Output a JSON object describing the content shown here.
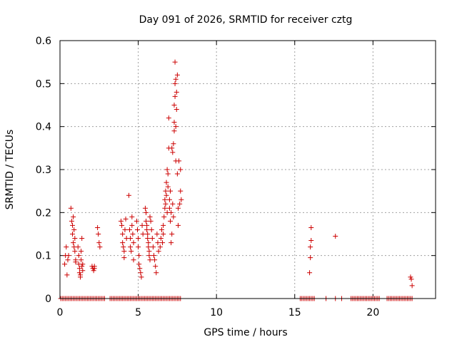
{
  "chart_data": {
    "type": "scatter",
    "title": "Day 091 of 2026, SRMTID for receiver cztg",
    "xlabel": "GPS time / hours",
    "ylabel": "SRMTID / TECUs",
    "xlim": [
      0,
      24
    ],
    "ylim": [
      0,
      0.6
    ],
    "x_ticks": [
      0,
      5,
      10,
      15,
      20
    ],
    "x_tick_labels": [
      "0",
      "5",
      "10",
      "15",
      "20"
    ],
    "y_ticks": [
      0,
      0.1,
      0.2,
      0.3,
      0.4,
      0.5,
      0.6
    ],
    "y_tick_labels": [
      "0",
      "0.1",
      "0.2",
      "0.3",
      "0.4",
      "0.5",
      "0.6"
    ],
    "grid": true,
    "marker": "+",
    "color": "#cc0000",
    "series": [
      {
        "name": "SRMTID",
        "points": [
          [
            0.3,
            0.08
          ],
          [
            0.35,
            0.1
          ],
          [
            0.4,
            0.12
          ],
          [
            0.45,
            0.055
          ],
          [
            0.5,
            0.09
          ],
          [
            0.55,
            0.1
          ],
          [
            0.7,
            0.21
          ],
          [
            0.75,
            0.18
          ],
          [
            0.8,
            0.17
          ],
          [
            0.8,
            0.15
          ],
          [
            0.85,
            0.19
          ],
          [
            0.85,
            0.13
          ],
          [
            0.9,
            0.16
          ],
          [
            0.9,
            0.12
          ],
          [
            0.95,
            0.14
          ],
          [
            0.95,
            0.11
          ],
          [
            1.0,
            0.09
          ],
          [
            1.0,
            0.085
          ],
          [
            1.15,
            0.12
          ],
          [
            1.2,
            0.1
          ],
          [
            1.2,
            0.08
          ],
          [
            1.25,
            0.07
          ],
          [
            1.25,
            0.06
          ],
          [
            1.3,
            0.055
          ],
          [
            1.3,
            0.05
          ],
          [
            1.35,
            0.11
          ],
          [
            1.35,
            0.09
          ],
          [
            1.4,
            0.14
          ],
          [
            1.4,
            0.075
          ],
          [
            1.45,
            0.08
          ],
          [
            1.45,
            0.065
          ],
          [
            2.05,
            0.075
          ],
          [
            2.1,
            0.07
          ],
          [
            2.15,
            0.065
          ],
          [
            2.2,
            0.075
          ],
          [
            2.2,
            0.07
          ],
          [
            2.4,
            0.165
          ],
          [
            2.45,
            0.15
          ],
          [
            2.5,
            0.13
          ],
          [
            2.55,
            0.12
          ],
          [
            3.9,
            0.18
          ],
          [
            3.95,
            0.17
          ],
          [
            4.0,
            0.15
          ],
          [
            4.0,
            0.13
          ],
          [
            4.05,
            0.12
          ],
          [
            4.1,
            0.11
          ],
          [
            4.1,
            0.095
          ],
          [
            4.15,
            0.16
          ],
          [
            4.2,
            0.185
          ],
          [
            4.25,
            0.14
          ],
          [
            4.4,
            0.24
          ],
          [
            4.45,
            0.16
          ],
          [
            4.5,
            0.14
          ],
          [
            4.5,
            0.12
          ],
          [
            4.55,
            0.11
          ],
          [
            4.6,
            0.19
          ],
          [
            4.6,
            0.17
          ],
          [
            4.65,
            0.15
          ],
          [
            4.7,
            0.13
          ],
          [
            4.7,
            0.09
          ],
          [
            4.9,
            0.18
          ],
          [
            4.95,
            0.16
          ],
          [
            5.0,
            0.14
          ],
          [
            5.0,
            0.12
          ],
          [
            5.05,
            0.1
          ],
          [
            5.05,
            0.08
          ],
          [
            5.1,
            0.07
          ],
          [
            5.15,
            0.06
          ],
          [
            5.2,
            0.05
          ],
          [
            5.25,
            0.17
          ],
          [
            5.3,
            0.15
          ],
          [
            5.45,
            0.21
          ],
          [
            5.5,
            0.2
          ],
          [
            5.5,
            0.18
          ],
          [
            5.55,
            0.17
          ],
          [
            5.55,
            0.16
          ],
          [
            5.6,
            0.15
          ],
          [
            5.6,
            0.14
          ],
          [
            5.65,
            0.13
          ],
          [
            5.65,
            0.12
          ],
          [
            5.7,
            0.11
          ],
          [
            5.7,
            0.1
          ],
          [
            5.75,
            0.19
          ],
          [
            5.75,
            0.09
          ],
          [
            5.8,
            0.18
          ],
          [
            5.85,
            0.16
          ],
          [
            5.9,
            0.14
          ],
          [
            5.95,
            0.12
          ],
          [
            6.0,
            0.1
          ],
          [
            6.05,
            0.09
          ],
          [
            6.1,
            0.075
          ],
          [
            6.15,
            0.06
          ],
          [
            6.2,
            0.15
          ],
          [
            6.25,
            0.13
          ],
          [
            6.3,
            0.11
          ],
          [
            6.4,
            0.12
          ],
          [
            6.45,
            0.14
          ],
          [
            6.5,
            0.16
          ],
          [
            6.55,
            0.13
          ],
          [
            6.6,
            0.15
          ],
          [
            6.6,
            0.17
          ],
          [
            6.65,
            0.19
          ],
          [
            6.7,
            0.21
          ],
          [
            6.7,
            0.23
          ],
          [
            6.75,
            0.25
          ],
          [
            6.75,
            0.22
          ],
          [
            6.8,
            0.24
          ],
          [
            6.8,
            0.27
          ],
          [
            6.85,
            0.3
          ],
          [
            6.85,
            0.2
          ],
          [
            6.9,
            0.29
          ],
          [
            6.9,
            0.26
          ],
          [
            6.95,
            0.35
          ],
          [
            6.95,
            0.42
          ],
          [
            7.0,
            0.23
          ],
          [
            7.0,
            0.21
          ],
          [
            7.05,
            0.25
          ],
          [
            7.05,
            0.18
          ],
          [
            7.1,
            0.2
          ],
          [
            7.1,
            0.13
          ],
          [
            7.15,
            0.15
          ],
          [
            7.15,
            0.35
          ],
          [
            7.2,
            0.34
          ],
          [
            7.2,
            0.22
          ],
          [
            7.25,
            0.36
          ],
          [
            7.25,
            0.19
          ],
          [
            7.3,
            0.45
          ],
          [
            7.3,
            0.41
          ],
          [
            7.3,
            0.39
          ],
          [
            7.35,
            0.5
          ],
          [
            7.35,
            0.55
          ],
          [
            7.35,
            0.47
          ],
          [
            7.4,
            0.51
          ],
          [
            7.4,
            0.4
          ],
          [
            7.4,
            0.32
          ],
          [
            7.45,
            0.48
          ],
          [
            7.45,
            0.44
          ],
          [
            7.5,
            0.52
          ],
          [
            7.5,
            0.29
          ],
          [
            7.55,
            0.17
          ],
          [
            7.55,
            0.21
          ],
          [
            7.6,
            0.32
          ],
          [
            7.65,
            0.22
          ],
          [
            7.7,
            0.25
          ],
          [
            7.7,
            0.3
          ],
          [
            7.75,
            0.23
          ],
          [
            15.95,
            0.06
          ],
          [
            16.0,
            0.095
          ],
          [
            16.0,
            0.12
          ],
          [
            16.05,
            0.135
          ],
          [
            16.05,
            0.165
          ],
          [
            17.6,
            0.145
          ],
          [
            22.4,
            0.05
          ],
          [
            22.45,
            0.045
          ],
          [
            22.5,
            0.03
          ]
        ],
        "zero_points": [
          0.05,
          0.15,
          0.25,
          0.35,
          0.45,
          0.55,
          0.65,
          0.75,
          0.85,
          0.95,
          1.05,
          1.15,
          1.25,
          1.35,
          1.45,
          1.55,
          1.65,
          1.75,
          1.85,
          1.95,
          2.05,
          2.15,
          2.25,
          2.35,
          2.45,
          2.55,
          2.65,
          2.75,
          2.85,
          3.2,
          3.3,
          3.4,
          3.5,
          3.6,
          3.7,
          3.8,
          3.9,
          4.0,
          4.1,
          4.2,
          4.3,
          4.4,
          4.5,
          4.6,
          4.7,
          4.8,
          4.9,
          5.0,
          5.1,
          5.2,
          5.3,
          5.4,
          5.5,
          5.6,
          5.7,
          5.8,
          5.9,
          6.0,
          6.1,
          6.2,
          6.3,
          6.4,
          6.5,
          6.6,
          6.7,
          6.8,
          6.9,
          7.0,
          7.1,
          7.2,
          7.3,
          7.4,
          7.5,
          7.6,
          7.7,
          15.35,
          15.45,
          15.55,
          15.65,
          15.75,
          15.85,
          15.95,
          16.05,
          16.15,
          16.25,
          17.0,
          17.6,
          18.0,
          18.6,
          18.7,
          18.8,
          18.9,
          19.0,
          19.1,
          19.2,
          19.3,
          19.4,
          19.5,
          19.6,
          19.7,
          19.8,
          19.9,
          20.0,
          20.1,
          20.2,
          20.3,
          20.4,
          20.9,
          21.0,
          21.1,
          21.2,
          21.3,
          21.4,
          21.5,
          21.6,
          21.7,
          21.8,
          21.9,
          22.0,
          22.1,
          22.2,
          22.3,
          22.4,
          22.5
        ]
      }
    ]
  }
}
